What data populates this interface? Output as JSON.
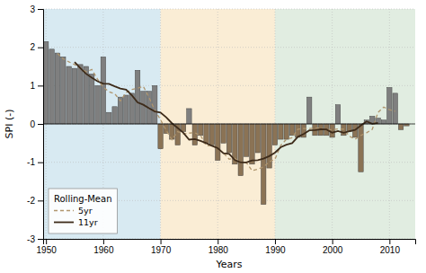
{
  "chart_data": {
    "type": "bar",
    "xlabel": "Years",
    "ylabel": "SPI (-)",
    "legend_title": "Rolling-Mean",
    "legend": "lower left",
    "grid": true,
    "xlim": [
      1949.5,
      2014.5
    ],
    "ylim": [
      -3,
      3
    ],
    "xticks": [
      1950,
      1960,
      1970,
      1980,
      1990,
      2000,
      2010
    ],
    "yticks": [
      -3,
      -2,
      -1,
      0,
      1,
      2,
      3
    ],
    "regions": [
      {
        "start": 1949.5,
        "end": 1970,
        "color": "#b8d8e8"
      },
      {
        "start": 1970,
        "end": 1990,
        "color": "#f5deb3"
      },
      {
        "start": 1990,
        "end": 2014.5,
        "color": "#c8dec8"
      }
    ],
    "x": [
      1950,
      1951,
      1952,
      1953,
      1954,
      1955,
      1956,
      1957,
      1958,
      1959,
      1960,
      1961,
      1962,
      1963,
      1964,
      1965,
      1966,
      1967,
      1968,
      1969,
      1970,
      1971,
      1972,
      1973,
      1974,
      1975,
      1976,
      1977,
      1978,
      1979,
      1980,
      1981,
      1982,
      1983,
      1984,
      1985,
      1986,
      1987,
      1988,
      1989,
      1990,
      1991,
      1992,
      1993,
      1994,
      1995,
      1996,
      1997,
      1998,
      1999,
      2000,
      2001,
      2002,
      2003,
      2004,
      2005,
      2006,
      2007,
      2008,
      2009,
      2010,
      2011,
      2012,
      2013
    ],
    "series": [
      {
        "type": "bar",
        "values": [
          2.15,
          1.95,
          1.85,
          1.75,
          1.5,
          1.45,
          1.55,
          1.5,
          1.3,
          1.0,
          1.75,
          0.3,
          0.45,
          0.7,
          0.75,
          0.8,
          1.4,
          0.85,
          0.85,
          1.0,
          -0.65,
          -0.25,
          -0.4,
          -0.55,
          -0.2,
          0.4,
          -0.55,
          -0.3,
          -0.5,
          -0.55,
          -0.95,
          -0.5,
          -0.75,
          -1.05,
          -1.35,
          -0.85,
          -1.05,
          -0.75,
          -2.1,
          -1.15,
          -0.55,
          -0.4,
          -0.4,
          -0.3,
          -0.35,
          -0.35,
          0.7,
          -0.3,
          -0.3,
          -0.3,
          -0.35,
          0.5,
          -0.3,
          -0.2,
          -0.35,
          -1.25,
          0.1,
          0.2,
          0.15,
          0.1,
          0.95,
          0.8,
          -0.15,
          -0.05
        ],
        "colors": [
          "#7f7f7f",
          "#7f7f7f",
          "#7f7f7f",
          "#7f7f7f",
          "#7f7f7f",
          "#7f7f7f",
          "#7f7f7f",
          "#7f7f7f",
          "#7f7f7f",
          "#7f7f7f",
          "#7f7f7f",
          "#7f7f7f",
          "#7f7f7f",
          "#7f7f7f",
          "#7f7f7f",
          "#7f7f7f",
          "#7f7f7f",
          "#7f7f7f",
          "#7f7f7f",
          "#7f7f7f",
          "#8B7355",
          "#8B7355",
          "#8B7355",
          "#8B7355",
          "#8B7355",
          "#7f7f7f",
          "#8B7355",
          "#8B7355",
          "#8B7355",
          "#8B7355",
          "#8B7355",
          "#8B7355",
          "#8B7355",
          "#8B7355",
          "#8B7355",
          "#8B7355",
          "#8B7355",
          "#8B7355",
          "#8B7355",
          "#8B7355",
          "#8B7355",
          "#8B7355",
          "#8B7355",
          "#8B7355",
          "#8B7355",
          "#8B7355",
          "#7f7f7f",
          "#8B7355",
          "#8B7355",
          "#8B7355",
          "#8B7355",
          "#7f7f7f",
          "#8B7355",
          "#8B7355",
          "#8B7355",
          "#8B7355",
          "#7f7f7f",
          "#7f7f7f",
          "#7f7f7f",
          "#7f7f7f",
          "#7f7f7f",
          "#7f7f7f",
          "#8B7355",
          "#8B7355"
        ]
      },
      {
        "name": "5yr",
        "type": "line",
        "color": "#b0966e",
        "line_style": "dashed",
        "values": [
          null,
          null,
          1.84,
          1.7,
          1.62,
          1.55,
          1.46,
          1.36,
          1.42,
          1.17,
          0.96,
          0.84,
          0.79,
          0.6,
          0.82,
          0.9,
          0.93,
          0.98,
          0.69,
          0.36,
          0.11,
          -0.17,
          -0.41,
          -0.2,
          -0.26,
          -0.24,
          -0.23,
          -0.3,
          -0.57,
          -0.56,
          -0.65,
          -0.76,
          -0.92,
          -0.9,
          -1.01,
          -1.01,
          -1.22,
          -1.18,
          -1.12,
          -0.99,
          -0.92,
          -0.56,
          -0.4,
          -0.36,
          -0.14,
          -0.12,
          -0.12,
          -0.11,
          -0.11,
          -0.15,
          -0.15,
          -0.13,
          -0.14,
          -0.32,
          -0.4,
          -0.3,
          -0.23,
          -0.14,
          0.3,
          0.44,
          0.37,
          0.33,
          null,
          null
        ]
      },
      {
        "name": "11yr",
        "type": "line",
        "color": "#3d2b1a",
        "line_style": "solid",
        "values": [
          null,
          null,
          null,
          null,
          null,
          1.6136,
          1.4545,
          1.3091,
          1.2045,
          1.1136,
          1.05,
          1.0455,
          0.9818,
          0.9227,
          0.8955,
          0.7455,
          0.5636,
          0.5,
          0.4091,
          0.3273,
          0.2955,
          0.1727,
          0.0182,
          -0.1045,
          -0.2318,
          -0.4091,
          -0.3955,
          -0.4409,
          -0.5,
          -0.5727,
          -0.6318,
          -0.7636,
          -0.7818,
          -0.9455,
          -1.0045,
          -1.0045,
          -0.9545,
          -0.9455,
          -0.9045,
          -0.8409,
          -0.75,
          -0.6091,
          -0.5409,
          -0.5,
          -0.3364,
          -0.2636,
          -0.1682,
          -0.1591,
          -0.1409,
          -0.1455,
          -0.2273,
          -0.1864,
          -0.2318,
          -0.1909,
          -0.1545,
          -0.0409,
          0.0636,
          0.0045,
          0.0273,
          null,
          null,
          null,
          null,
          null
        ]
      }
    ]
  }
}
